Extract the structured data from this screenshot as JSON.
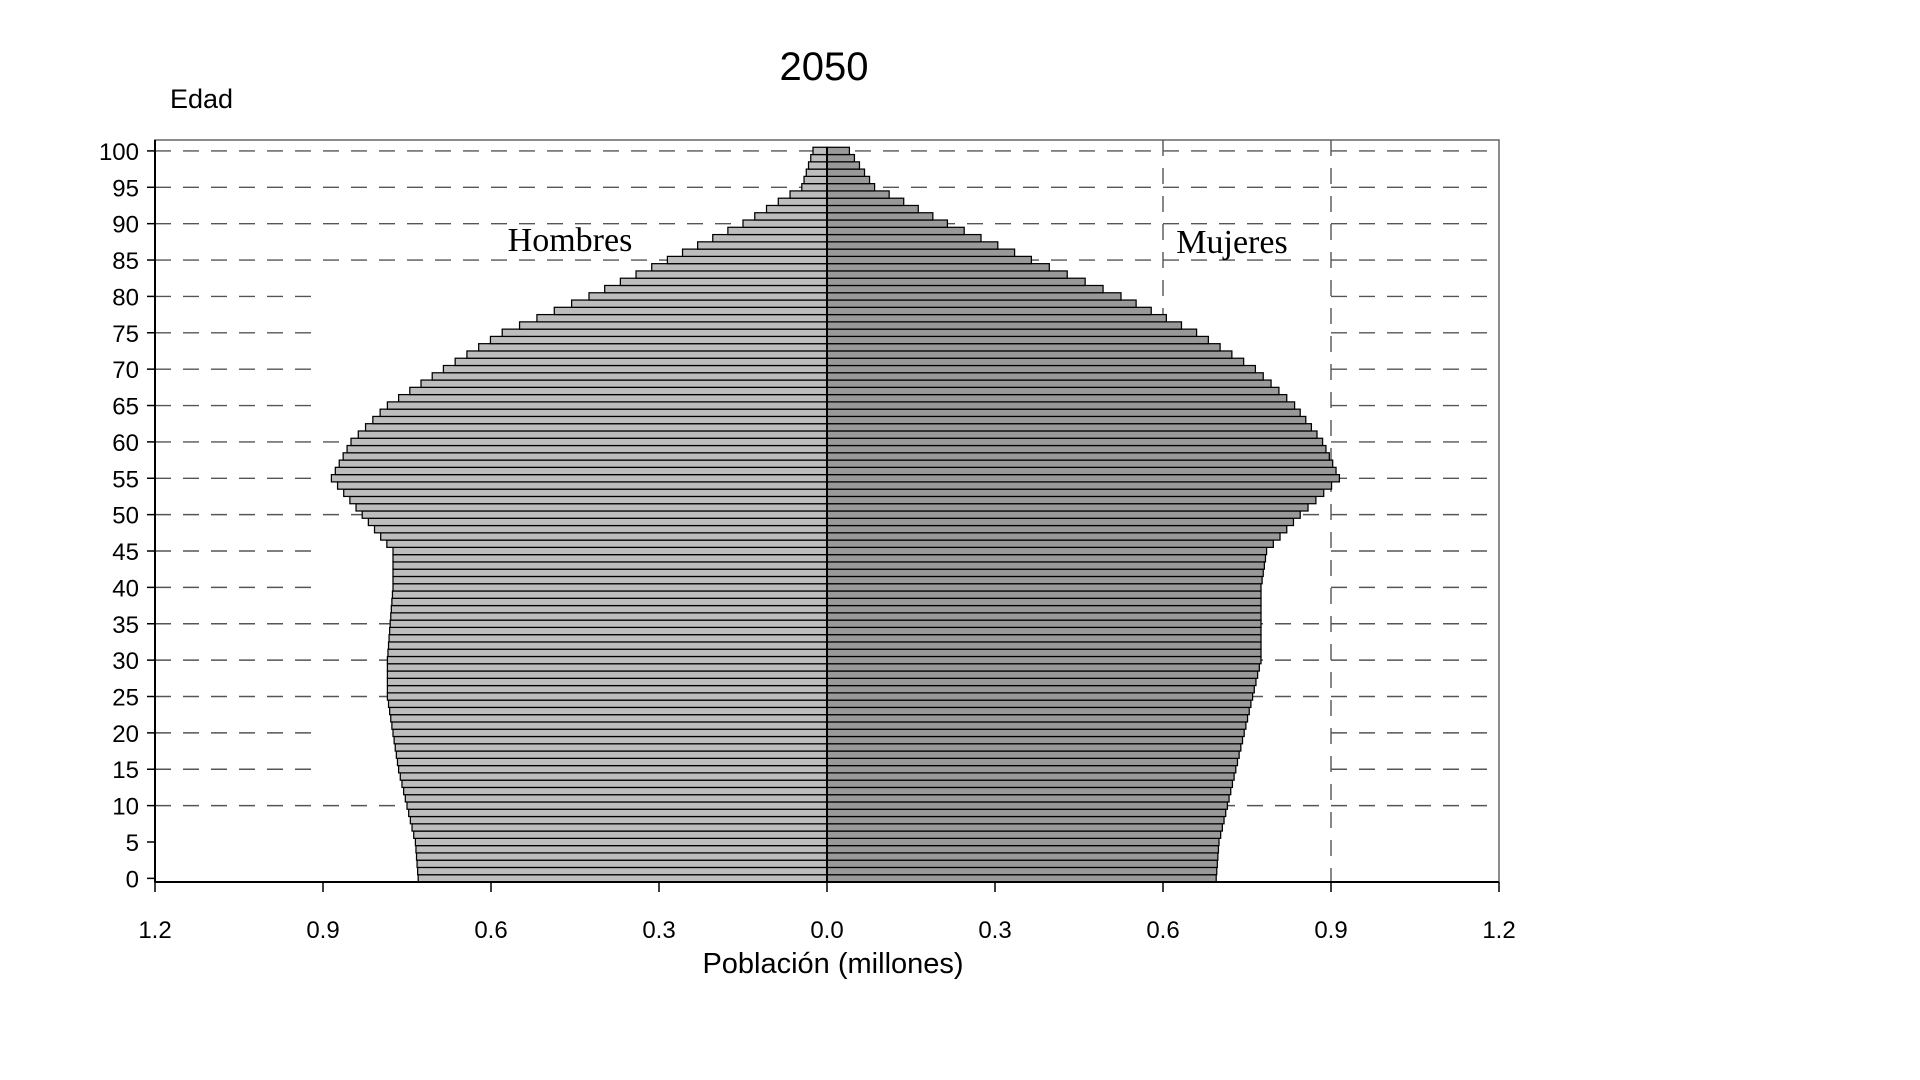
{
  "chart_data": {
    "type": "bar",
    "orientation": "horizontal-population-pyramid",
    "title": "2050",
    "ylabel": "Edad",
    "xlabel": "Población (millones)",
    "xlim": [
      -1.2,
      1.2
    ],
    "ylim": [
      0,
      100
    ],
    "x_tick_labels": [
      "1.2",
      "0.9",
      "0.6",
      "0.3",
      "0.0",
      "0.3",
      "0.6",
      "0.9",
      "1.2"
    ],
    "y_tick_labels": [
      "0",
      "5",
      "10",
      "15",
      "20",
      "25",
      "30",
      "35",
      "40",
      "45",
      "50",
      "55",
      "60",
      "65",
      "70",
      "75",
      "80",
      "85",
      "90",
      "95",
      "100"
    ],
    "gridlines": {
      "horizontal_ages": [
        10,
        25,
        30,
        35,
        50,
        60,
        85,
        90,
        95,
        100
      ],
      "horizontal_partial_ages": [
        15,
        20,
        40,
        45,
        55,
        65,
        70,
        75,
        80
      ],
      "vertical_values": [
        0.6,
        0.9
      ],
      "style": "dashed"
    },
    "colors": {
      "males": "#bdbdbd",
      "females": "#999999",
      "outline": "#000000",
      "grid": "#555555"
    },
    "series": [
      {
        "name": "Hombres",
        "side": "left",
        "anchor": [
          0,
          0.74
        ],
        "points": [
          [
            0,
            0.73
          ],
          [
            5,
            0.735
          ],
          [
            10,
            0.75
          ],
          [
            15,
            0.765
          ],
          [
            20,
            0.775
          ],
          [
            25,
            0.785
          ],
          [
            30,
            0.785
          ],
          [
            35,
            0.78
          ],
          [
            40,
            0.775
          ],
          [
            45,
            0.775
          ],
          [
            50,
            0.83
          ],
          [
            55,
            0.885
          ],
          [
            60,
            0.85
          ],
          [
            65,
            0.785
          ],
          [
            70,
            0.685
          ],
          [
            75,
            0.58
          ],
          [
            80,
            0.425
          ],
          [
            85,
            0.285
          ],
          [
            90,
            0.15
          ],
          [
            95,
            0.045
          ],
          [
            100,
            0.025
          ]
        ]
      },
      {
        "name": "Mujeres",
        "side": "right",
        "anchor": [
          0,
          0.7
        ],
        "points": [
          [
            0,
            0.695
          ],
          [
            5,
            0.7
          ],
          [
            10,
            0.715
          ],
          [
            15,
            0.73
          ],
          [
            20,
            0.745
          ],
          [
            25,
            0.76
          ],
          [
            30,
            0.775
          ],
          [
            35,
            0.775
          ],
          [
            40,
            0.775
          ],
          [
            45,
            0.785
          ],
          [
            50,
            0.845
          ],
          [
            55,
            0.915
          ],
          [
            60,
            0.885
          ],
          [
            65,
            0.835
          ],
          [
            70,
            0.765
          ],
          [
            75,
            0.66
          ],
          [
            80,
            0.525
          ],
          [
            85,
            0.365
          ],
          [
            90,
            0.215
          ],
          [
            95,
            0.085
          ],
          [
            100,
            0.04
          ]
        ]
      }
    ]
  }
}
